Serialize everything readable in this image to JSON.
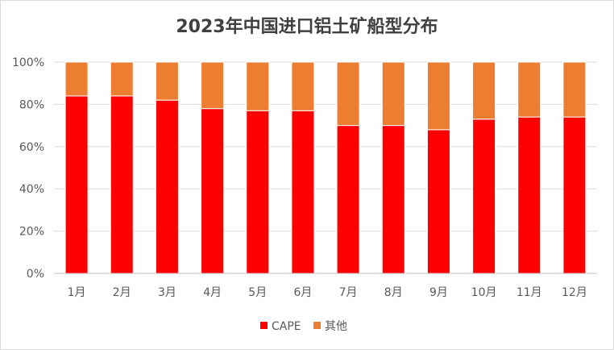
{
  "chart_data": {
    "type": "bar",
    "stacked": true,
    "percent": true,
    "title": "2023年中国进口铝土矿船型分布",
    "categories": [
      "1月",
      "2月",
      "3月",
      "4月",
      "5月",
      "6月",
      "7月",
      "8月",
      "9月",
      "10月",
      "11月",
      "12月"
    ],
    "series": [
      {
        "name": "CAPE",
        "color": "#ff0000",
        "values": [
          84,
          84,
          82,
          78,
          77,
          77,
          70,
          70,
          68,
          73,
          74,
          74
        ]
      },
      {
        "name": "其他",
        "color": "#ed7d31",
        "values": [
          16,
          16,
          18,
          22,
          23,
          23,
          30,
          30,
          32,
          27,
          26,
          26
        ]
      }
    ],
    "yticks": [
      "0%",
      "20%",
      "40%",
      "60%",
      "80%",
      "100%"
    ],
    "ylim": [
      0,
      100
    ],
    "grid": true,
    "legend_position": "bottom"
  }
}
